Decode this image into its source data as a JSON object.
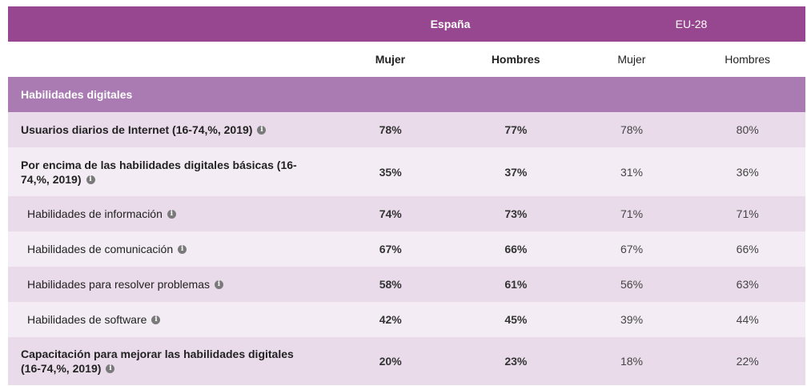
{
  "header": {
    "group1": "España",
    "group2": "EU-28",
    "sub": [
      "Mujer",
      "Hombres",
      "Mujer",
      "Hombres"
    ]
  },
  "section": {
    "title": "Habilidades digitales"
  },
  "info_icon": "info-icon",
  "rows": [
    {
      "label": "Usuarios diarios de Internet (16-74,%, 2019)",
      "values": [
        "78%",
        "77%",
        "78%",
        "80%"
      ]
    },
    {
      "label": "Por encima de las habilidades digitales básicas (16-74,%, 2019)",
      "values": [
        "35%",
        "37%",
        "31%",
        "36%"
      ]
    },
    {
      "label": "Habilidades de información",
      "values": [
        "74%",
        "73%",
        "71%",
        "71%"
      ]
    },
    {
      "label": "Habilidades de comunicación",
      "values": [
        "67%",
        "66%",
        "67%",
        "66%"
      ]
    },
    {
      "label": "Habilidades para resolver problemas",
      "values": [
        "58%",
        "61%",
        "56%",
        "63%"
      ]
    },
    {
      "label": "Habilidades de software",
      "values": [
        "42%",
        "45%",
        "39%",
        "44%"
      ]
    },
    {
      "label": "Capacitación para mejorar las habilidades digitales (16-74,%, 2019)",
      "values": [
        "20%",
        "23%",
        "18%",
        "22%"
      ]
    }
  ],
  "colors": {
    "header_bg": "#97478f",
    "section_bg": "#a97bb2",
    "row_dark": "#e9dbea",
    "row_light": "#f3ecf4"
  }
}
